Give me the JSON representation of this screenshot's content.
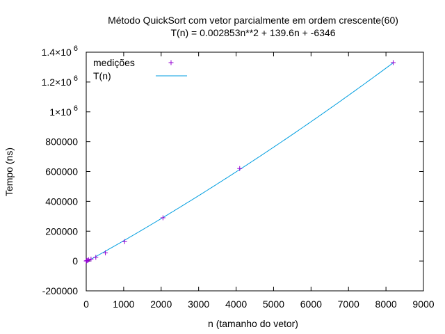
{
  "chart_data": {
    "type": "scatter",
    "title": "Método QuickSort com vetor parcialmente em ordem crescente(60)",
    "subtitle": "T(n) = 0.002853n**2 + 139.6n + -6346",
    "xlabel": "n (tamanho do vetor)",
    "ylabel": "Tempo (ns)",
    "xlim": [
      0,
      9000
    ],
    "ylim": [
      -200000,
      1400000
    ],
    "x_ticks": [
      0,
      1000,
      2000,
      3000,
      4000,
      5000,
      6000,
      7000,
      8000,
      9000
    ],
    "x_tick_labels": [
      "0",
      "1000",
      "2000",
      "3000",
      "4000",
      "5000",
      "6000",
      "7000",
      "8000",
      "9000"
    ],
    "y_ticks": [
      -200000,
      0,
      200000,
      400000,
      600000,
      800000,
      1000000,
      1200000,
      1400000
    ],
    "y_tick_labels": [
      {
        "text": "-200000"
      },
      {
        "text": "0"
      },
      {
        "text": "200000"
      },
      {
        "text": "400000"
      },
      {
        "text": "600000"
      },
      {
        "text": "800000"
      },
      {
        "base": "1×10",
        "exp": "6"
      },
      {
        "base": "1.2×10",
        "exp": "6"
      },
      {
        "base": "1.4×10",
        "exp": "6"
      }
    ],
    "grid": false,
    "legend_position": "top-left",
    "series": [
      {
        "name": "medições",
        "kind": "points",
        "marker": "+",
        "color": "#9400d3",
        "x": [
          2,
          4,
          8,
          16,
          32,
          64,
          128,
          256,
          512,
          1024,
          2048,
          4096,
          8192
        ],
        "y": [
          300,
          500,
          1000,
          2000,
          4000,
          8000,
          13000,
          25000,
          55000,
          130000,
          290000,
          620000,
          1330000
        ]
      },
      {
        "name": "T(n)",
        "kind": "line",
        "color": "#009ee0",
        "formula": {
          "a": 0.002853,
          "b": 139.6,
          "c": -6346
        },
        "x_range": [
          0,
          8192
        ]
      }
    ]
  }
}
